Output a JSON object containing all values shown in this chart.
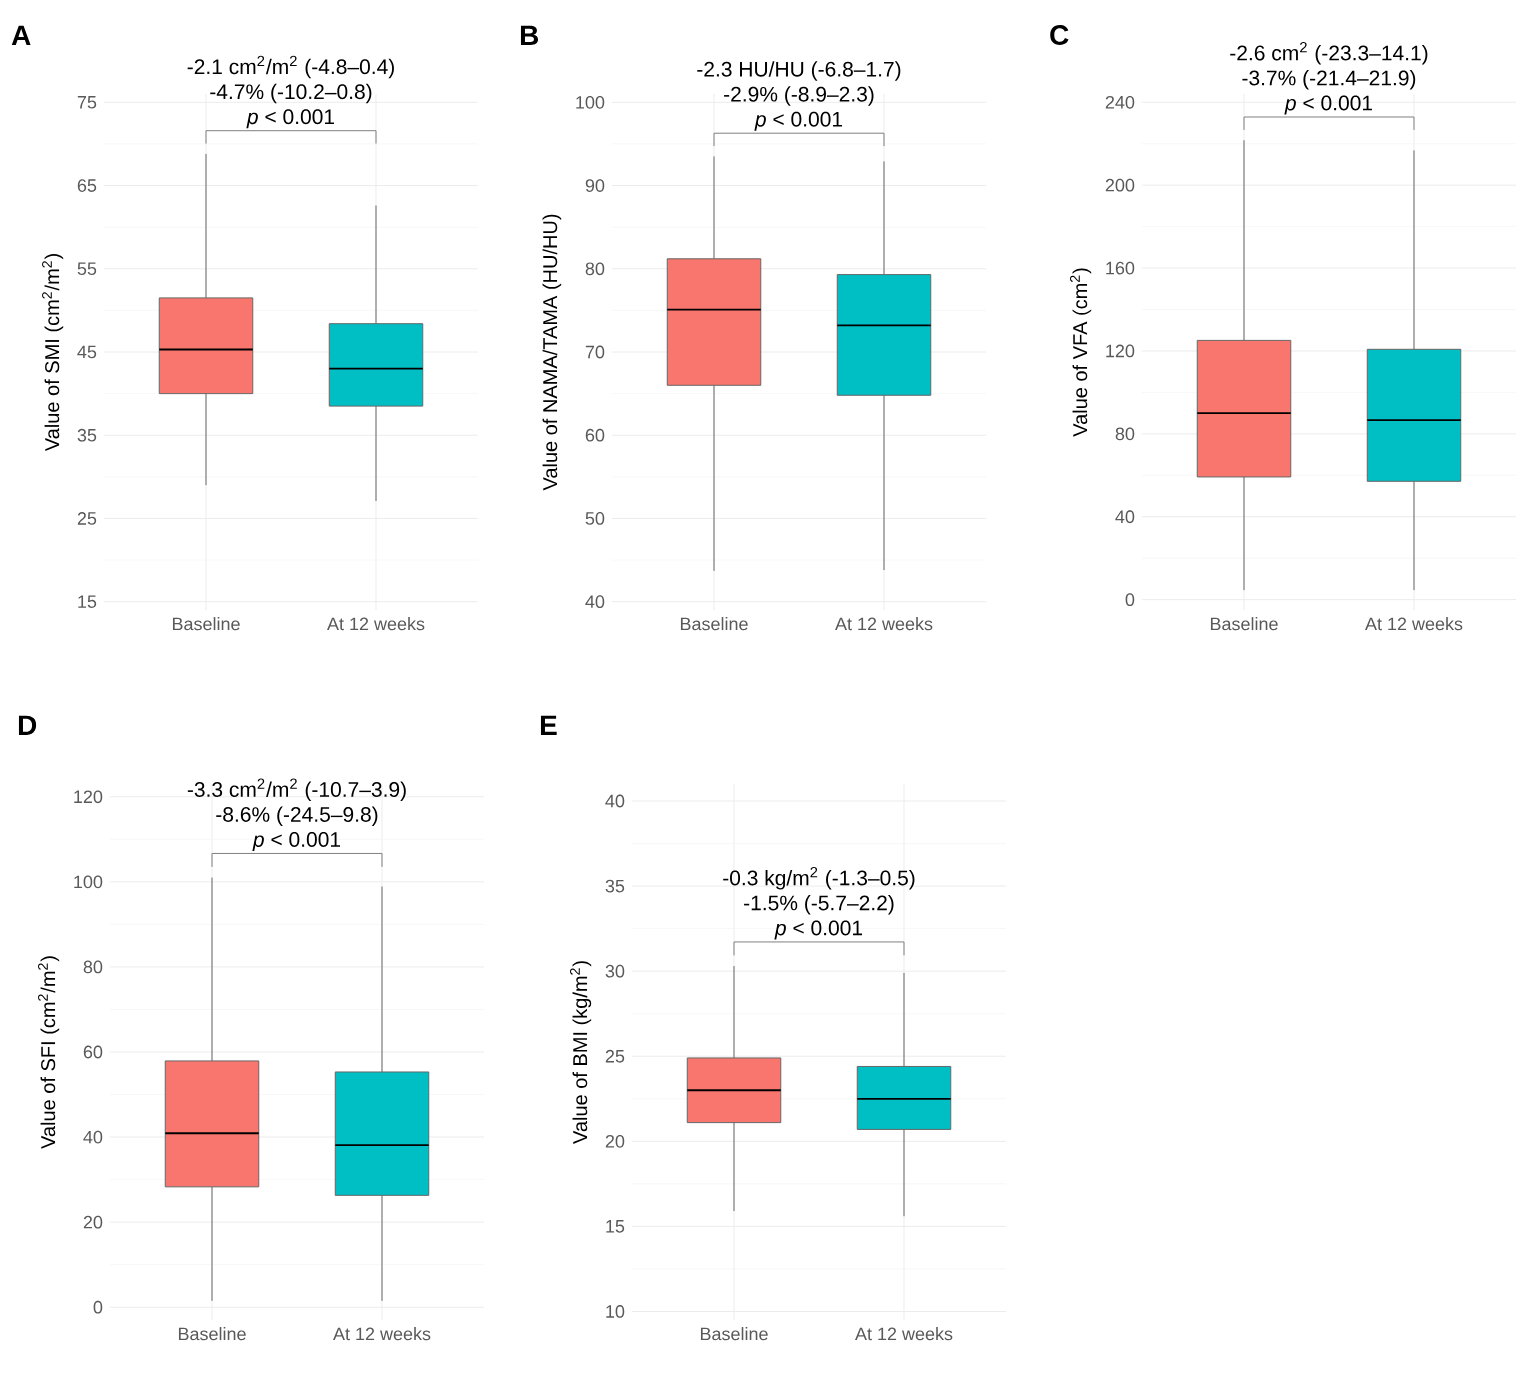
{
  "chart_data": [
    {
      "type": "box",
      "title": "A",
      "ylabel": "Value of SMI (cm$^{2}$/m$^{2}$)",
      "categories": [
        "Baseline",
        "At 12 weeks"
      ],
      "colors": [
        "#f8766d",
        "#00bfc4"
      ],
      "boxes": [
        {
          "low": 29.0,
          "q1": 40.0,
          "median": 45.3,
          "q3": 51.5,
          "high": 68.8
        },
        {
          "low": 27.1,
          "q1": 38.5,
          "median": 43.0,
          "q3": 48.4,
          "high": 62.6
        }
      ],
      "ylim": [
        14,
        76
      ],
      "yticks": [
        15,
        25,
        35,
        45,
        55,
        65,
        75
      ],
      "grid": true,
      "annotations": [
        "-2.1 cm$^{2}$/m$^{2}$ (-4.8–0.4)",
        "-4.7% (-10.2–0.8)",
        "*p* < 0.001"
      ]
    },
    {
      "type": "box",
      "title": "B",
      "ylabel": "Value of NAMA/TAMA (HU/HU)",
      "categories": [
        "Baseline",
        "At 12 weeks"
      ],
      "colors": [
        "#f8766d",
        "#00bfc4"
      ],
      "boxes": [
        {
          "low": 43.7,
          "q1": 66.0,
          "median": 75.1,
          "q3": 81.2,
          "high": 93.5
        },
        {
          "low": 43.8,
          "q1": 64.8,
          "median": 73.2,
          "q3": 79.3,
          "high": 92.9
        }
      ],
      "ylim": [
        39,
        101
      ],
      "yticks": [
        40,
        50,
        60,
        70,
        80,
        90,
        100
      ],
      "grid": true,
      "annotations": [
        "-2.3 HU/HU (-6.8–1.7)",
        "-2.9% (-8.9–2.3)",
        "*p* < 0.001"
      ]
    },
    {
      "type": "box",
      "title": "C",
      "ylabel": "Value of VFA (cm$^{2}$)",
      "categories": [
        "Baseline",
        "At 12 weeks"
      ],
      "colors": [
        "#f8766d",
        "#00bfc4"
      ],
      "boxes": [
        {
          "low": 4.6,
          "q1": 59.2,
          "median": 90.0,
          "q3": 125.1,
          "high": 221.7
        },
        {
          "low": 4.6,
          "q1": 57.1,
          "median": 86.6,
          "q3": 120.8,
          "high": 216.8
        }
      ],
      "ylim": [
        -5,
        244
      ],
      "yticks": [
        0,
        40,
        80,
        120,
        160,
        200,
        240
      ],
      "grid": true,
      "annotations": [
        "-2.6 cm$^{2}$ (-23.3–14.1)",
        "-3.7% (-21.4–21.9)",
        "*p* < 0.001"
      ]
    },
    {
      "type": "box",
      "title": "D",
      "ylabel": "Value of SFI (cm$^{2}$/m$^{2}$)",
      "categories": [
        "Baseline",
        "At 12 weeks"
      ],
      "colors": [
        "#f8766d",
        "#00bfc4"
      ],
      "boxes": [
        {
          "low": 1.5,
          "q1": 28.3,
          "median": 40.9,
          "q3": 57.9,
          "high": 101.0
        },
        {
          "low": 1.5,
          "q1": 26.3,
          "median": 38.1,
          "q3": 55.3,
          "high": 98.9
        }
      ],
      "ylim": [
        -3,
        123
      ],
      "yticks": [
        0,
        20,
        40,
        60,
        80,
        100,
        120
      ],
      "grid": true,
      "annotations": [
        "-3.3 cm$^{2}$/m$^{2}$ (-10.7–3.9)",
        "-8.6% (-24.5–9.8)",
        "*p* < 0.001"
      ]
    },
    {
      "type": "box",
      "title": "E",
      "ylabel": "Value of BMI (kg/m$^{2}$)",
      "categories": [
        "Baseline",
        "At 12 weeks"
      ],
      "colors": [
        "#f8766d",
        "#00bfc4"
      ],
      "boxes": [
        {
          "low": 15.9,
          "q1": 21.1,
          "median": 23.0,
          "q3": 24.9,
          "high": 30.3
        },
        {
          "low": 15.6,
          "q1": 20.7,
          "median": 22.5,
          "q3": 24.4,
          "high": 29.9
        }
      ],
      "ylim": [
        9.5,
        41
      ],
      "yticks": [
        10,
        15,
        20,
        25,
        30,
        35,
        40
      ],
      "grid": true,
      "annotations": [
        "-0.3 kg/m$^{2}$ (-1.3–0.5)",
        "-1.5% (-5.7–2.2)",
        "*p* < 0.001"
      ]
    }
  ]
}
